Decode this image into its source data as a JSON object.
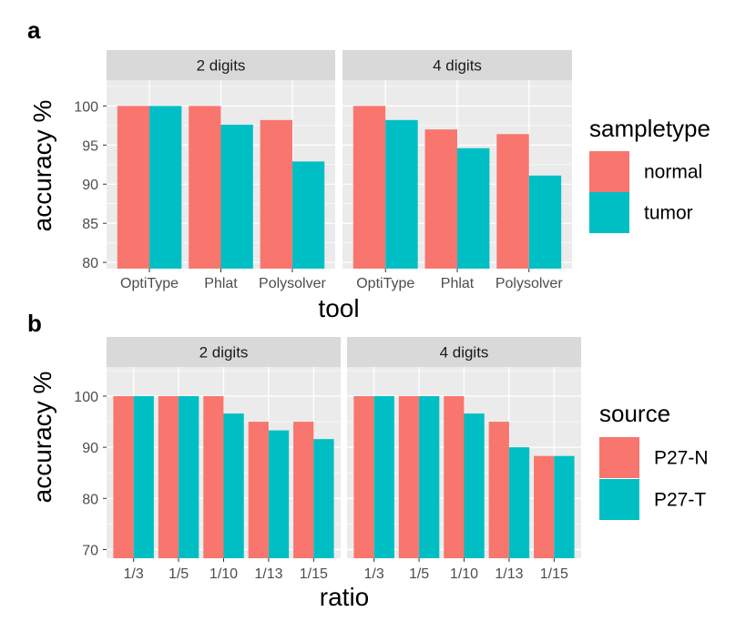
{
  "colors": {
    "series1": "#F8766D",
    "series2": "#00BFC4",
    "panel_bg": "#EBEBEB",
    "strip_bg": "#D9D9D9",
    "grid": "#FFFFFF"
  },
  "chart_data": [
    {
      "panel_label": "a",
      "type": "bar",
      "xlabel": "tool",
      "ylabel": "accuracy %",
      "ylim": [
        79.2,
        103.3
      ],
      "yticks": [
        80,
        85,
        90,
        95,
        100
      ],
      "legend_title": "sampletype",
      "series_names": [
        "normal",
        "tumor"
      ],
      "categories": [
        "OptiType",
        "Phlat",
        "Polysolver"
      ],
      "facets": [
        {
          "label": "2 digits",
          "values": [
            [
              100,
              100
            ],
            [
              100,
              97.6
            ],
            [
              98.2,
              92.9
            ]
          ]
        },
        {
          "label": "4 digits",
          "values": [
            [
              100,
              98.2
            ],
            [
              97.0,
              94.6
            ],
            [
              96.4,
              91.1
            ]
          ]
        }
      ]
    },
    {
      "panel_label": "b",
      "type": "bar",
      "xlabel": "ratio",
      "ylabel": "accuracy %",
      "ylim": [
        68.3,
        105.7
      ],
      "yticks": [
        70,
        80,
        90,
        100
      ],
      "legend_title": "source",
      "series_names": [
        "P27-N",
        "P27-T"
      ],
      "categories": [
        "1/3",
        "1/5",
        "1/10",
        "1/13",
        "1/15"
      ],
      "facets": [
        {
          "label": "2 digits",
          "values": [
            [
              100,
              100
            ],
            [
              100,
              100
            ],
            [
              100,
              96.6
            ],
            [
              95.0,
              93.3
            ],
            [
              95.0,
              91.6
            ]
          ]
        },
        {
          "label": "4 digits",
          "values": [
            [
              100,
              100
            ],
            [
              100,
              100
            ],
            [
              100,
              96.6
            ],
            [
              95.0,
              90.0
            ],
            [
              88.3,
              88.3
            ]
          ]
        }
      ]
    }
  ]
}
